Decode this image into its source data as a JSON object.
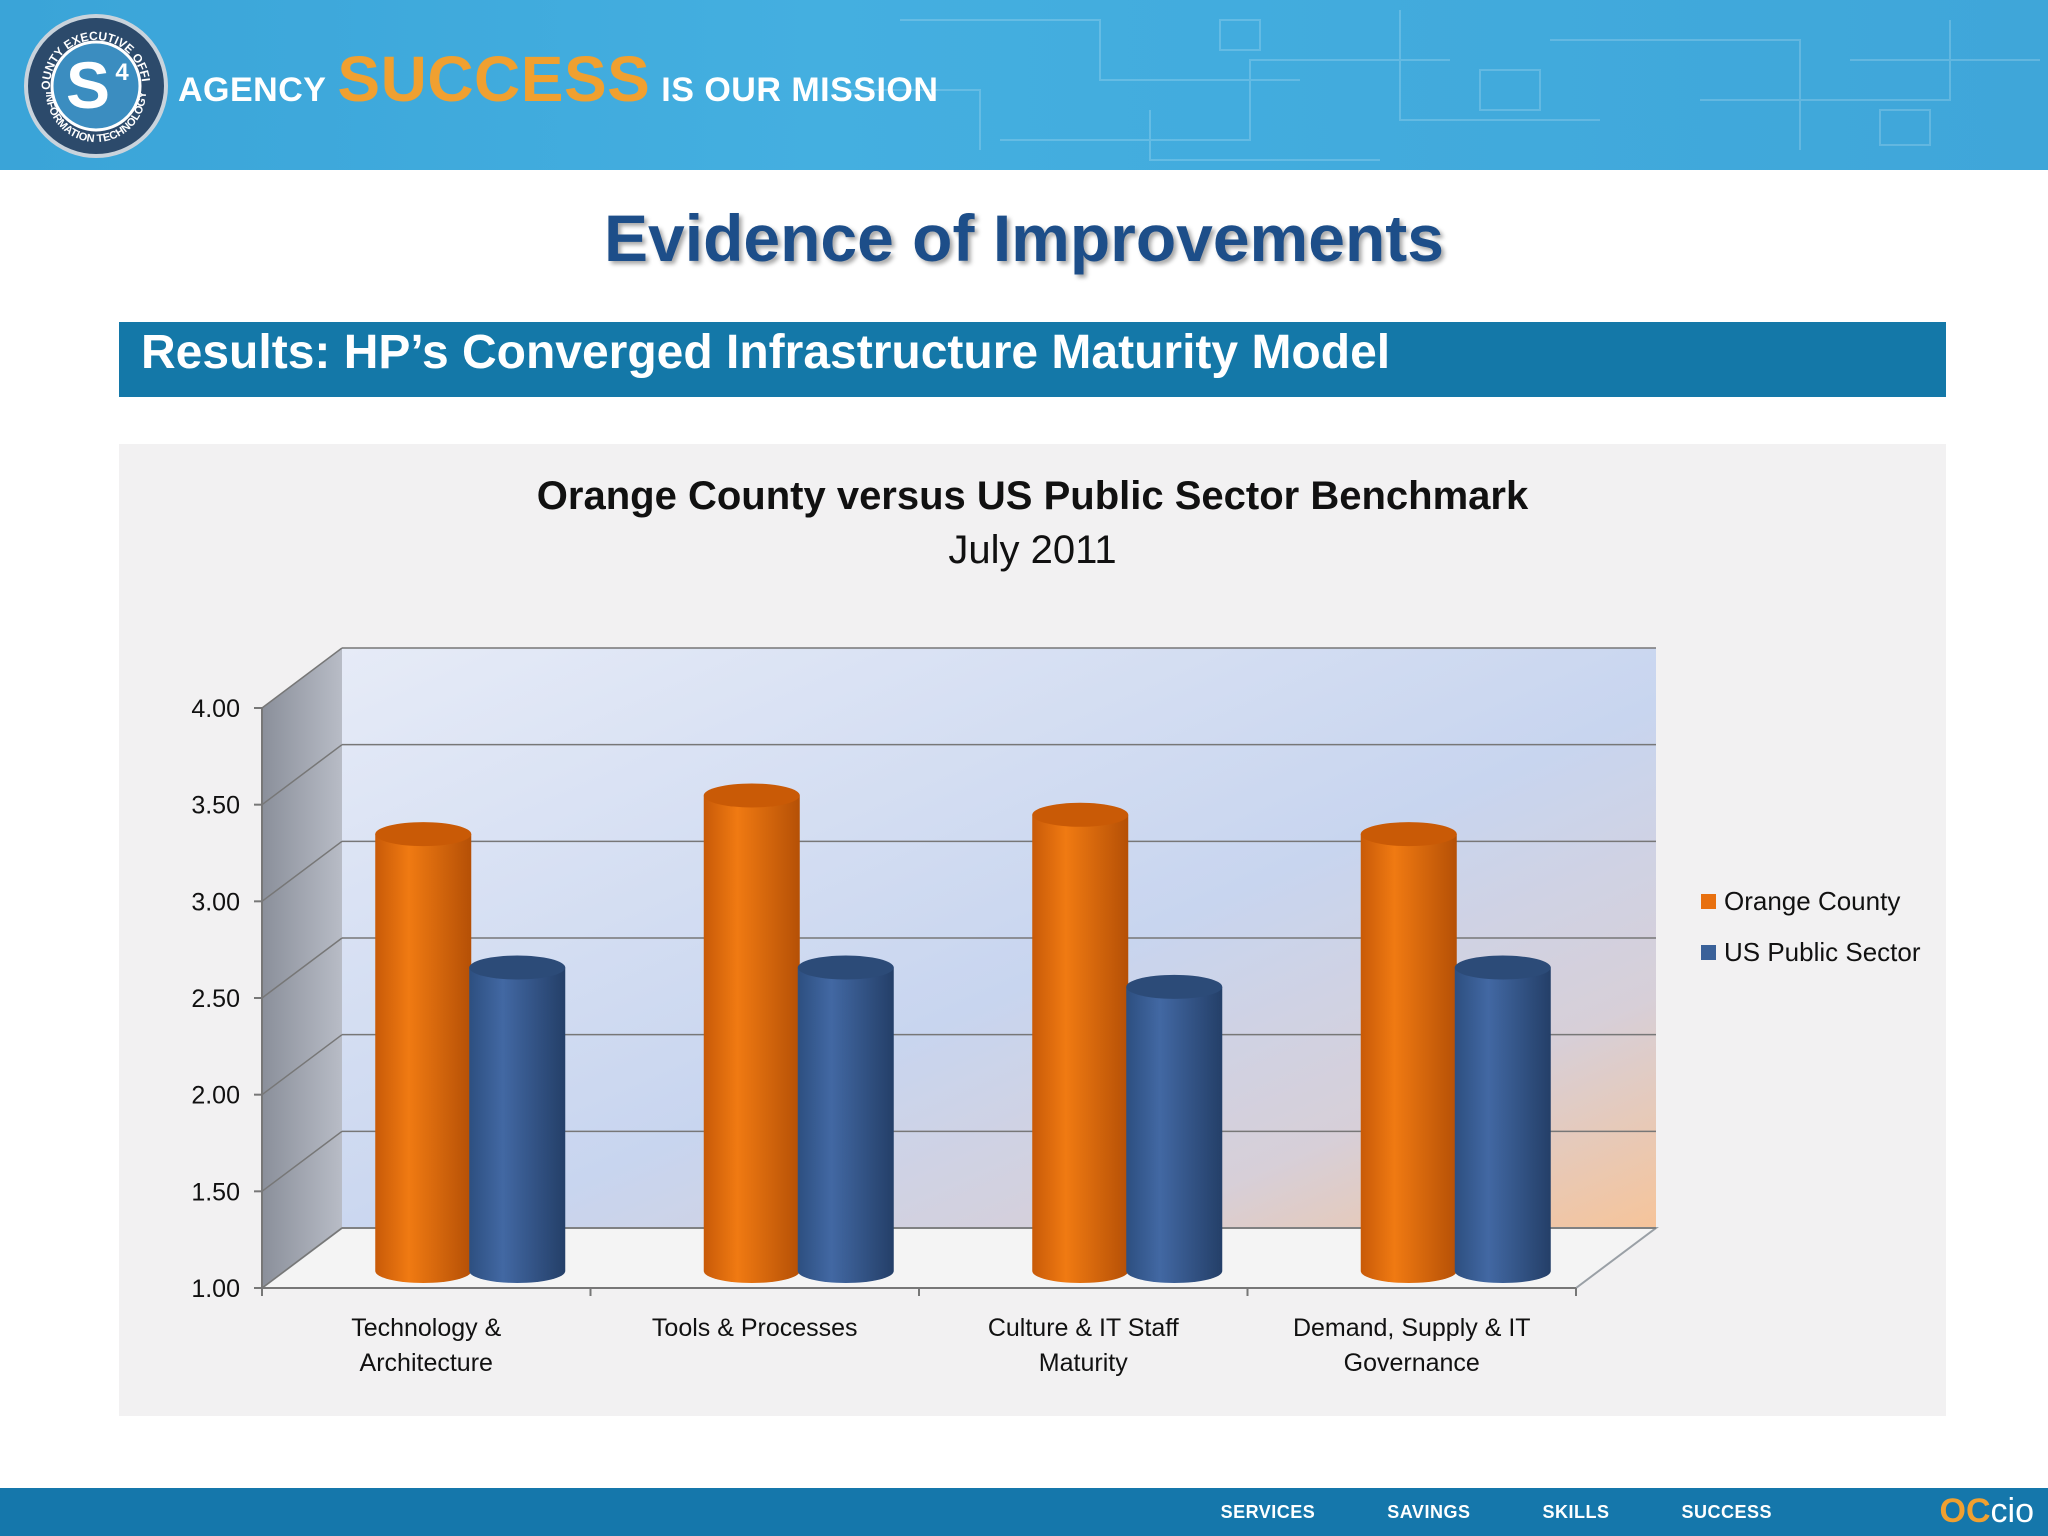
{
  "banner": {
    "prefix": "AGENCY",
    "highlight": "SUCCESS",
    "suffix": "IS OUR MISSION",
    "seal_top_text": "COUNTY EXECUTIVE OFFICE",
    "seal_bottom_text": "INFORMATION TECHNOLOGY",
    "seal_mark": "S",
    "seal_sup": "4"
  },
  "slide": {
    "title": "Evidence of Improvements",
    "subtitle": "Results: HP’s Converged Infrastructure Maturity Model"
  },
  "chart_data": {
    "type": "bar",
    "title": "Orange County versus US Public Sector Benchmark",
    "subtitle": "July 2011",
    "categories": [
      [
        "Technology &",
        "Architecture"
      ],
      [
        "Tools & Processes"
      ],
      [
        "Culture & IT Staff",
        "Maturity"
      ],
      [
        "Demand, Supply & IT",
        "Governance"
      ]
    ],
    "series": [
      {
        "name": "Orange County",
        "color": "#e8700f",
        "values": [
          3.27,
          3.47,
          3.37,
          3.27
        ]
      },
      {
        "name": "US Public Sector",
        "color": "#3a6199",
        "values": [
          2.58,
          2.58,
          2.48,
          2.58
        ]
      }
    ],
    "ylim": [
      1.0,
      4.0
    ],
    "yticks": [
      "1.00",
      "1.50",
      "2.00",
      "2.50",
      "3.00",
      "3.50",
      "4.00"
    ],
    "grid": true,
    "legend_position": "right",
    "style": "3d-cylinder"
  },
  "footer": {
    "nav": [
      "SERVICES",
      "SAVINGS",
      "SKILLS",
      "SUCCESS"
    ],
    "logo_oc": "OC",
    "logo_cio": "cio",
    "accent": "#1577ab"
  }
}
